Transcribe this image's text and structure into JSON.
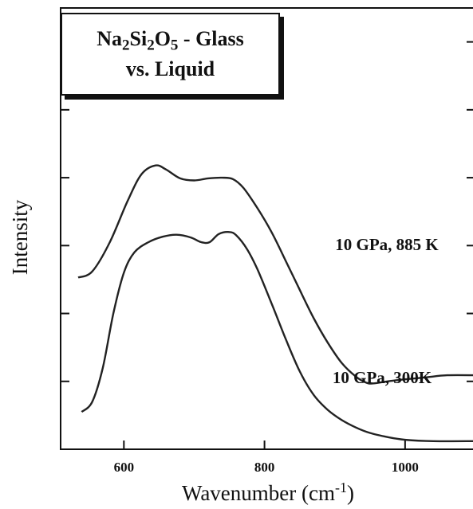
{
  "chart_data": {
    "type": "line",
    "title_parts": [
      {
        "text": "Na"
      },
      {
        "text": "2",
        "sub": true
      },
      {
        "text": "Si"
      },
      {
        "text": "2",
        "sub": true
      },
      {
        "text": "O"
      },
      {
        "text": "5",
        "sub": true
      },
      {
        "text": " - Glass"
      }
    ],
    "title_line2": "vs. Liquid",
    "xlabel_base": "Wavenumber (cm",
    "xlabel_sup": "-1",
    "xlabel_end": ")",
    "ylabel": "Intensity",
    "xlim": [
      510,
      1100
    ],
    "ylim": [
      0,
      6.5
    ],
    "x_ticks": [
      600,
      800,
      1000
    ],
    "y_ticks": [
      1,
      2,
      3,
      4,
      5,
      6
    ],
    "series": [
      {
        "name": "10 GPa, 885 K",
        "points": [
          [
            535,
            2.53
          ],
          [
            555,
            2.62
          ],
          [
            580,
            3.05
          ],
          [
            605,
            3.65
          ],
          [
            625,
            4.05
          ],
          [
            645,
            4.18
          ],
          [
            660,
            4.12
          ],
          [
            680,
            3.99
          ],
          [
            700,
            3.96
          ],
          [
            720,
            3.99
          ],
          [
            740,
            4.0
          ],
          [
            755,
            3.98
          ],
          [
            770,
            3.85
          ],
          [
            790,
            3.55
          ],
          [
            810,
            3.2
          ],
          [
            830,
            2.78
          ],
          [
            850,
            2.35
          ],
          [
            870,
            1.93
          ],
          [
            890,
            1.57
          ],
          [
            910,
            1.27
          ],
          [
            930,
            1.07
          ],
          [
            945,
            0.98
          ],
          [
            955,
            0.97
          ],
          [
            975,
            1.0
          ],
          [
            1000,
            1.03
          ],
          [
            1030,
            1.06
          ],
          [
            1060,
            1.09
          ],
          [
            1100,
            1.09
          ]
        ],
        "label_value_x": 1075
      },
      {
        "name": "10 GPa, 300K",
        "points": [
          [
            540,
            0.55
          ],
          [
            555,
            0.7
          ],
          [
            570,
            1.2
          ],
          [
            585,
            2.0
          ],
          [
            600,
            2.6
          ],
          [
            615,
            2.9
          ],
          [
            635,
            3.05
          ],
          [
            655,
            3.13
          ],
          [
            675,
            3.16
          ],
          [
            695,
            3.12
          ],
          [
            710,
            3.05
          ],
          [
            722,
            3.05
          ],
          [
            735,
            3.17
          ],
          [
            750,
            3.2
          ],
          [
            760,
            3.15
          ],
          [
            775,
            2.95
          ],
          [
            790,
            2.65
          ],
          [
            810,
            2.15
          ],
          [
            830,
            1.63
          ],
          [
            850,
            1.15
          ],
          [
            870,
            0.8
          ],
          [
            890,
            0.58
          ],
          [
            910,
            0.43
          ],
          [
            930,
            0.32
          ],
          [
            950,
            0.24
          ],
          [
            975,
            0.18
          ],
          [
            1000,
            0.14
          ],
          [
            1040,
            0.12
          ],
          [
            1100,
            0.12
          ]
        ],
        "label_value_x": 1075
      }
    ]
  }
}
